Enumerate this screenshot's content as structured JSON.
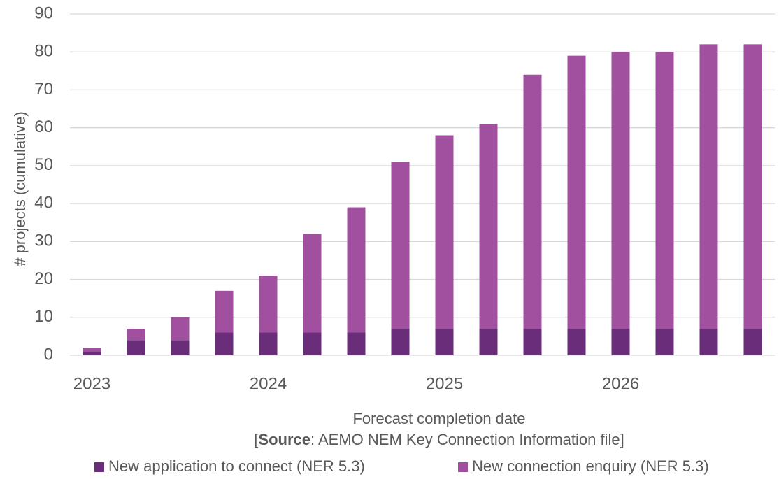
{
  "chart_data": {
    "type": "stacked_bar",
    "x_label": "Forecast completion date",
    "y_label": "# projects (cumulative)",
    "source_open": "[",
    "source_label": "Source",
    "source_text": ": AEMO NEM Key Connection Information file]",
    "categories": [
      "2023",
      null,
      null,
      null,
      "2024",
      null,
      null,
      null,
      "2025",
      null,
      null,
      null,
      "2026",
      null,
      null,
      null
    ],
    "series": [
      {
        "name": "New application to connect (NER 5.3)",
        "color": "#6a2d7a",
        "values": [
          1,
          4,
          4,
          6,
          6,
          6,
          6,
          7,
          7,
          7,
          7,
          7,
          7,
          7,
          7,
          7
        ]
      },
      {
        "name": "New connection enquiry (NER 5.3)",
        "color": "#a0509e",
        "values": [
          1,
          3,
          6,
          11,
          15,
          26,
          33,
          44,
          51,
          54,
          67,
          72,
          73,
          73,
          75,
          75
        ]
      }
    ],
    "ylim": [
      0,
      90
    ],
    "yticks": [
      0,
      10,
      20,
      30,
      40,
      50,
      60,
      70,
      80,
      90
    ],
    "grid": true
  }
}
